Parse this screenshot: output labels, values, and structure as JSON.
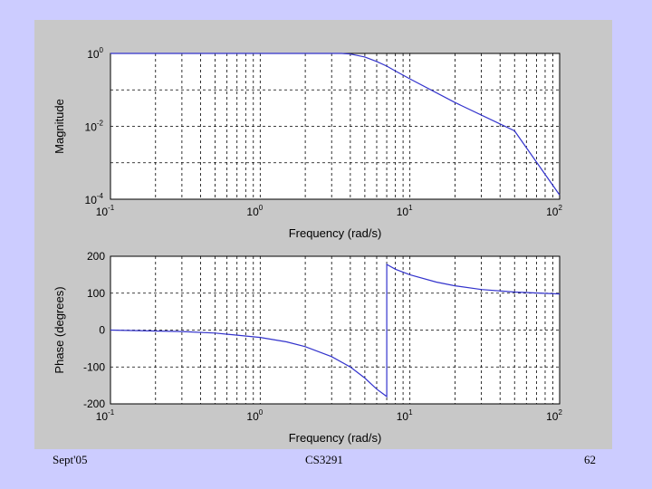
{
  "footer": {
    "left": "Sept'05",
    "center": "CS3291",
    "right": "62"
  },
  "colors": {
    "figure_bg": "#c8c8c8",
    "slide_bg": "#ccccff",
    "line": "#3333cc"
  },
  "chart_data": [
    {
      "type": "line",
      "xscale": "log",
      "yscale": "log",
      "xlabel": "Frequency (rad/s)",
      "ylabel": "Magnitude",
      "xlim": [
        0.1,
        100
      ],
      "ylim": [
        0.0001,
        1
      ],
      "grid": true,
      "xticks": [
        {
          "base": "10",
          "exp": "-1",
          "v": 0.1
        },
        {
          "base": "10",
          "exp": "0",
          "v": 1
        },
        {
          "base": "10",
          "exp": "1",
          "v": 10
        },
        {
          "base": "10",
          "exp": "2",
          "v": 100
        }
      ],
      "yticks": [
        {
          "base": "10",
          "exp": "0",
          "v": 1
        },
        {
          "base": "10",
          "exp": "-2",
          "v": 0.01
        },
        {
          "base": "10",
          "exp": "-4",
          "v": 0.0001
        }
      ],
      "x": [
        0.1,
        1,
        3.5,
        4,
        5,
        6,
        7,
        8,
        10,
        20,
        50,
        100
      ],
      "y": [
        1,
        1,
        1,
        0.96,
        0.8,
        0.6,
        0.45,
        0.33,
        0.2,
        0.045,
        0.0075,
        0.00013
      ]
    },
    {
      "type": "line",
      "xscale": "log",
      "yscale": "linear",
      "xlabel": "Frequency (rad/s)",
      "ylabel": "Phase (degrees)",
      "xlim": [
        0.1,
        100
      ],
      "ylim": [
        -200,
        200
      ],
      "grid": true,
      "xticks": [
        {
          "base": "10",
          "exp": "-1",
          "v": 0.1
        },
        {
          "base": "10",
          "exp": "0",
          "v": 1
        },
        {
          "base": "10",
          "exp": "1",
          "v": 10
        },
        {
          "base": "10",
          "exp": "2",
          "v": 100
        }
      ],
      "yticks": [
        {
          "label": "200",
          "v": 200
        },
        {
          "label": "100",
          "v": 100
        },
        {
          "label": "0",
          "v": 0
        },
        {
          "label": "-100",
          "v": -100
        },
        {
          "label": "-200",
          "v": -200
        }
      ],
      "x": [
        0.1,
        0.3,
        0.5,
        1,
        1.5,
        2,
        3,
        4,
        5,
        6,
        7,
        7,
        8,
        10,
        15,
        20,
        30,
        50,
        100
      ],
      "y": [
        0,
        -4,
        -8,
        -20,
        -32,
        -45,
        -72,
        -100,
        -130,
        -160,
        -180,
        178,
        165,
        150,
        130,
        120,
        110,
        103,
        98
      ]
    }
  ]
}
